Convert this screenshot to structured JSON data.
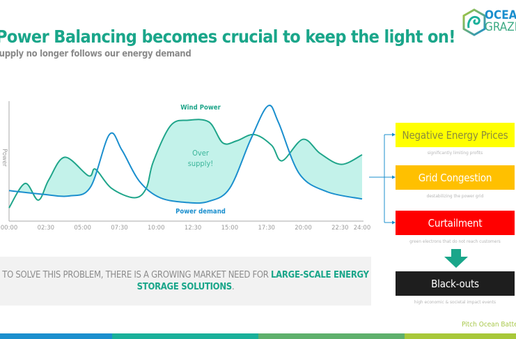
{
  "header": {
    "title": "Power Balancing becomes crucial to keep the light on!",
    "subtitle": "supply no longer follows our energy demand"
  },
  "logo": {
    "line1": "OCEAN",
    "line2": "GRAZER"
  },
  "chart_data": {
    "type": "line",
    "ylabel": "Power",
    "xlabel": "",
    "xlim": [
      0,
      24
    ],
    "ylim": [
      0,
      100
    ],
    "x_ticks": [
      "00:00",
      "02:30",
      "05:00",
      "07:30",
      "10:00",
      "12:30",
      "15:00",
      "17:30",
      "20:00",
      "22:30",
      "24:00"
    ],
    "x_tick_values": [
      0,
      2.5,
      5,
      7.5,
      10,
      12.5,
      15,
      17.5,
      20,
      22.5,
      24
    ],
    "series": [
      {
        "name": "Wind Power",
        "color": "#1fa58a",
        "x": [
          0,
          1.09,
          1.99,
          2.7,
          3.79,
          5.4,
          5.87,
          6.96,
          8.52,
          9.33,
          9.8,
          10.98,
          12.17,
          13.59,
          14.53,
          15.48,
          16.66,
          17.85,
          18.56,
          19.98,
          21.16,
          22.58,
          24
        ],
        "y": [
          10.5,
          31,
          17,
          34,
          53,
          37.4,
          43,
          27,
          19,
          27,
          49,
          79.5,
          84,
          82.5,
          65,
          66.7,
          72,
          63,
          50,
          68,
          56,
          47,
          55
        ]
      },
      {
        "name": "Power demand",
        "color": "#1b8fce",
        "x": [
          0,
          2.22,
          4.12,
          5.54,
          6.82,
          7.67,
          8.85,
          10.27,
          12.17,
          13.59,
          15.0,
          16.43,
          17.6,
          18.32,
          19.74,
          21.63,
          24
        ],
        "y": [
          25,
          22,
          20.5,
          28,
          72,
          59,
          33,
          19,
          15,
          16,
          27,
          68,
          96,
          82,
          39,
          24,
          18
        ]
      }
    ],
    "fill_label": "Over supply!",
    "fill_color": "#c3f2ea",
    "annotations": [
      "Wind Power",
      "Over",
      "supply!",
      "Power demand"
    ]
  },
  "callout": {
    "text": "TO SOLVE THIS PROBLEM, THERE IS A GROWING MARKET NEED FOR ",
    "highlight": "LARGE-SCALE ENERGY STORAGE SOLUTIONS",
    "end": "."
  },
  "consequences": [
    {
      "label": "Negative Energy Prices",
      "sub": "significantly limiting profits",
      "bg": "#ffff00",
      "fg": "#8c8c3c"
    },
    {
      "label": "Grid Congestion",
      "sub": "destabilizing the power grid",
      "bg": "#ffc000",
      "fg": "#ffffff"
    },
    {
      "label": "Curtailment",
      "sub": "green electrons that do not reach customers",
      "bg": "#ff0000",
      "fg": "#ffffff"
    }
  ],
  "result": {
    "label": "Black-outs",
    "sub": "high economic & societal impact events",
    "bg": "#1e1e1e",
    "fg": "#ffffff"
  },
  "footer": {
    "text": "Pitch Ocean Battery"
  },
  "colors": {
    "accent": "#1aa68a",
    "blue": "#1b8fce",
    "bars": [
      "#1b8fce",
      "#1ab09a",
      "#5fb06c",
      "#a8c83a"
    ]
  }
}
